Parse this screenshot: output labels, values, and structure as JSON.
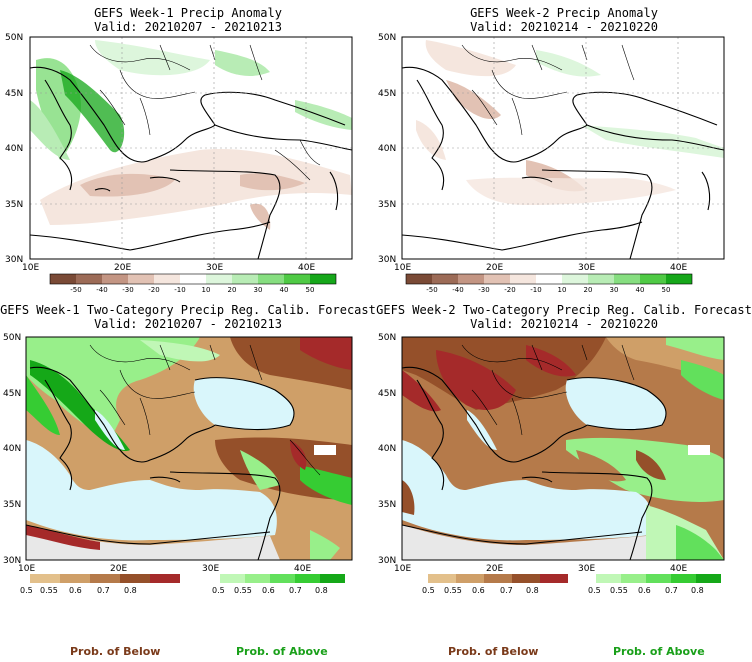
{
  "colors": {
    "anom_scale": [
      "#7a4a36",
      "#9c6b57",
      "#c39583",
      "#e2c2b4",
      "#f5e6de",
      "#ffffff",
      "#ddf6dc",
      "#b8ecb5",
      "#86de80",
      "#4fca45",
      "#16a71a"
    ],
    "below_scale": [
      "#e3c08b",
      "#cf9f68",
      "#b57a4a",
      "#95502a",
      "#a52a2a"
    ],
    "above_scale": [
      "#c0f7b6",
      "#98ef8a",
      "#62e05c",
      "#36cc33",
      "#15a818"
    ],
    "sea_fill": "#d9f6fb",
    "nodata_fill": "#e8e8e8",
    "prob_below_text": "#7a3a1a",
    "prob_above_text": "#1aa01a"
  },
  "map_axes": {
    "lat_labels": [
      "50N",
      "45N",
      "40N",
      "35N",
      "30N"
    ],
    "lon_labels": [
      "10E",
      "20E",
      "30E",
      "40E"
    ]
  },
  "panels": [
    {
      "title": "GEFS Week-1 Precip Anomaly",
      "valid": "Valid: 20210207 - 20210213",
      "kind": "anomaly",
      "colorbar_labels": [
        "-50",
        "-40",
        "-30",
        "-20",
        "-10",
        "10",
        "20",
        "30",
        "40",
        "50"
      ]
    },
    {
      "title": "GEFS Week-2 Precip Anomaly",
      "valid": "Valid: 20210214 - 20210220",
      "kind": "anomaly",
      "colorbar_labels": [
        "-50",
        "-40",
        "-30",
        "-20",
        "-10",
        "10",
        "20",
        "30",
        "40",
        "50"
      ]
    },
    {
      "title": "GEFS Week-1 Two-Category Precip Reg. Calib. Forecast",
      "valid": "Valid: 20210207 - 20210213",
      "kind": "probability",
      "below_labels": [
        "0.5",
        "0.55",
        "0.6",
        "0.7",
        "0.8"
      ],
      "above_labels": [
        "0.5",
        "0.55",
        "0.6",
        "0.7",
        "0.8"
      ]
    },
    {
      "title": "GEFS Week-2 Two-Category Precip Reg. Calib. Forecast",
      "valid": "Valid: 20210214 - 20210220",
      "kind": "probability",
      "below_labels": [
        "0.5",
        "0.55",
        "0.6",
        "0.7",
        "0.8"
      ],
      "above_labels": [
        "0.5",
        "0.55",
        "0.6",
        "0.7",
        "0.8"
      ]
    }
  ],
  "footer": {
    "left_below": "Prob. of Below",
    "left_above": "Prob. of Above",
    "right_below": "Prob. of Below",
    "right_above": "Prob. of Above"
  }
}
